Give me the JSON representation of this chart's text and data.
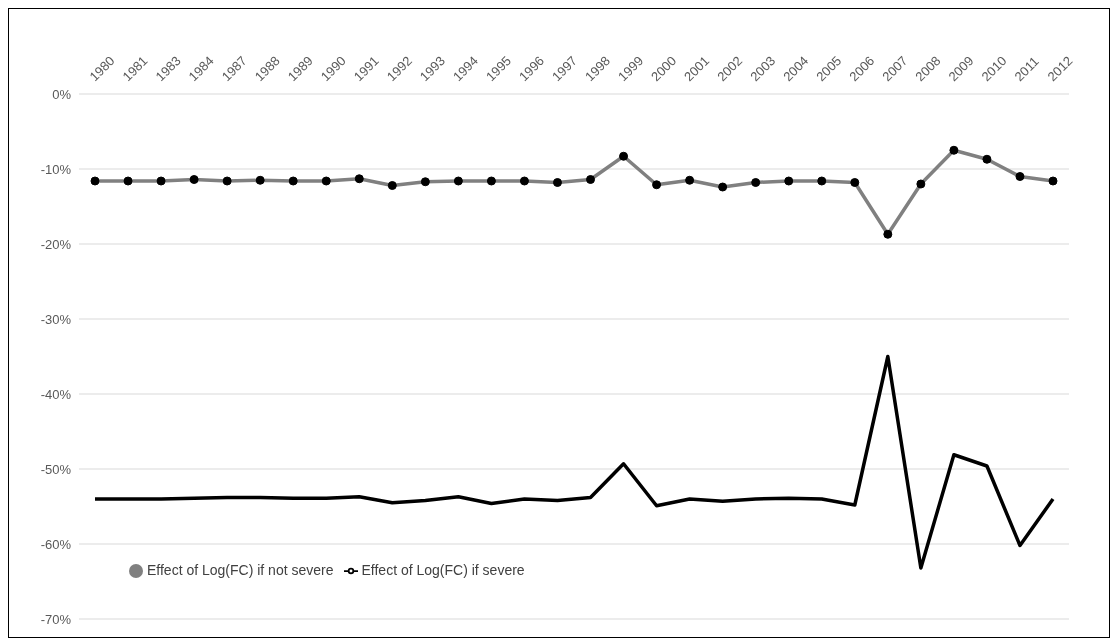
{
  "chart_data": {
    "type": "line",
    "categories": [
      "1980",
      "1981",
      "1983",
      "1984",
      "1987",
      "1988",
      "1989",
      "1990",
      "1991",
      "1992",
      "1993",
      "1994",
      "1995",
      "1996",
      "1997",
      "1998",
      "1999",
      "2000",
      "2001",
      "2002",
      "2003",
      "2004",
      "2005",
      "2006",
      "2007",
      "2008",
      "2009",
      "2010",
      "2011",
      "2012"
    ],
    "series": [
      {
        "name": "Effect of Log(FC) if severe",
        "color": "#000000",
        "marker": "none",
        "values": [
          -54.0,
          -54.0,
          -54.0,
          -53.9,
          -53.8,
          -53.8,
          -53.9,
          -53.9,
          -53.7,
          -54.5,
          -54.2,
          -53.7,
          -54.6,
          -54.0,
          -54.2,
          -53.8,
          -49.3,
          -54.9,
          -54.0,
          -54.3,
          -54.0,
          -53.9,
          -54.0,
          -54.8,
          -35.0,
          -63.2,
          -48.1,
          -49.6,
          -60.2,
          -54.0
        ]
      },
      {
        "name": "Effect of Log(FC) if not severe",
        "color": "#808080",
        "marker": "circle",
        "values": [
          -11.6,
          -11.6,
          -11.6,
          -11.4,
          -11.6,
          -11.5,
          -11.6,
          -11.6,
          -11.3,
          -12.2,
          -11.7,
          -11.6,
          -11.6,
          -11.6,
          -11.8,
          -11.4,
          -8.3,
          -12.1,
          -11.5,
          -12.4,
          -11.8,
          -11.6,
          -11.6,
          -11.8,
          -18.7,
          -12.0,
          -7.5,
          -8.7,
          -11.0,
          -11.6
        ]
      }
    ],
    "ylim": [
      -70,
      0
    ],
    "yticks": [
      {
        "value": -70,
        "label": "-70%"
      },
      {
        "value": -60,
        "label": "-60%"
      },
      {
        "value": -50,
        "label": "-50%"
      },
      {
        "value": -40,
        "label": "-40%"
      },
      {
        "value": -30,
        "label": "-30%"
      },
      {
        "value": -20,
        "label": "-20%"
      },
      {
        "value": -10,
        "label": "-10%"
      },
      {
        "value": 0,
        "label": "0%"
      }
    ],
    "grid": "y",
    "legend": "bottom left",
    "line_style": "solid"
  }
}
